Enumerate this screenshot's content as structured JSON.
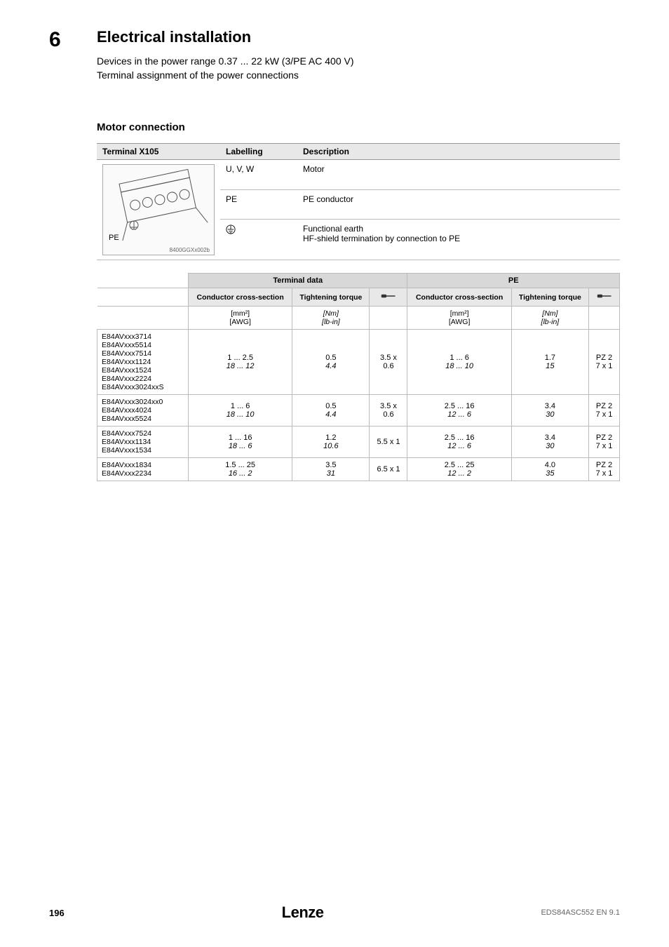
{
  "chapter": {
    "number": "6",
    "title": "Electrical installation",
    "sub1": "Devices in the power range 0.37 ... 22 kW (3/PE AC 400 V)",
    "sub2": "Terminal assignment of the power connections"
  },
  "section": {
    "title": "Motor connection"
  },
  "table1": {
    "headers": [
      "Terminal X105",
      "Labelling",
      "Description"
    ],
    "diagram": {
      "pe_label": "PE",
      "caption": "8400GGXx002b"
    },
    "rows": [
      {
        "label": "U, V, W",
        "desc": "Motor"
      },
      {
        "label": "PE",
        "desc": "PE conductor"
      },
      {
        "label_is_icon": true,
        "desc": "Functional earth\nHF-shield termination by connection to PE"
      }
    ]
  },
  "table2": {
    "group_headers": [
      "",
      "Terminal data",
      "PE"
    ],
    "sub_headers": [
      "",
      "Conductor cross-section",
      "Tightening torque",
      "",
      "Conductor cross-section",
      "Tightening torque",
      ""
    ],
    "unit_row": [
      "",
      "[mm²]\n[AWG]",
      "[Nm]\n[lb-in]",
      "",
      "[mm²]\n[AWG]",
      "[Nm]\n[lb-in]",
      ""
    ],
    "rows": [
      {
        "models": [
          "E84AVxxx3714",
          "E84AVxxx5514",
          "E84AVxxx7514",
          "E84AVxxx1124",
          "E84AVxxx1524",
          "E84AVxxx2224",
          "E84AVxxx3024xxS"
        ],
        "td_cs": "1 ... 2.5",
        "td_cs_i": "18 ... 12",
        "td_tt": "0.5",
        "td_tt_i": "4.4",
        "td_sd": "3.5 x 0.6",
        "pe_cs": "1 ... 6",
        "pe_cs_i": "18 ... 10",
        "pe_tt": "1.7",
        "pe_tt_i": "15",
        "pe_drv": "PZ 2\n7 x 1"
      },
      {
        "models": [
          "E84AVxxx3024xx0",
          "E84AVxxx4024",
          "E84AVxxx5524"
        ],
        "td_cs": "1 ... 6",
        "td_cs_i": "18 ... 10",
        "td_tt": "0.5",
        "td_tt_i": "4.4",
        "td_sd": "3.5 x 0.6",
        "pe_cs": "2.5 ... 16",
        "pe_cs_i": "12 ... 6",
        "pe_tt": "3.4",
        "pe_tt_i": "30",
        "pe_drv": "PZ 2\n7 x 1"
      },
      {
        "models": [
          "E84AVxxx7524",
          "E84AVxxx1134",
          "E84AVxxx1534"
        ],
        "td_cs": "1 ... 16",
        "td_cs_i": "18 ... 6",
        "td_tt": "1.2",
        "td_tt_i": "10.6",
        "td_sd": "5.5 x 1",
        "pe_cs": "2.5 ... 16",
        "pe_cs_i": "12 ... 6",
        "pe_tt": "3.4",
        "pe_tt_i": "30",
        "pe_drv": "PZ 2\n7 x 1"
      },
      {
        "models": [
          "E84AVxxx1834",
          "E84AVxxx2234"
        ],
        "td_cs": "1.5 ... 25",
        "td_cs_i": "16 ... 2",
        "td_tt": "3.5",
        "td_tt_i": "31",
        "td_sd": "6.5 x 1",
        "pe_cs": "2.5 ... 25",
        "pe_cs_i": "12 ... 2",
        "pe_tt": "4.0",
        "pe_tt_i": "35",
        "pe_drv": "PZ 2\n7 x 1"
      }
    ],
    "colors": {
      "header_bg": "#d8d8d8",
      "subhead_bg": "#e8e8e8",
      "border": "#bbbbbb"
    }
  },
  "footer": {
    "page": "196",
    "logo": "Lenze",
    "doc": "EDS84ASC552 EN 9.1"
  }
}
